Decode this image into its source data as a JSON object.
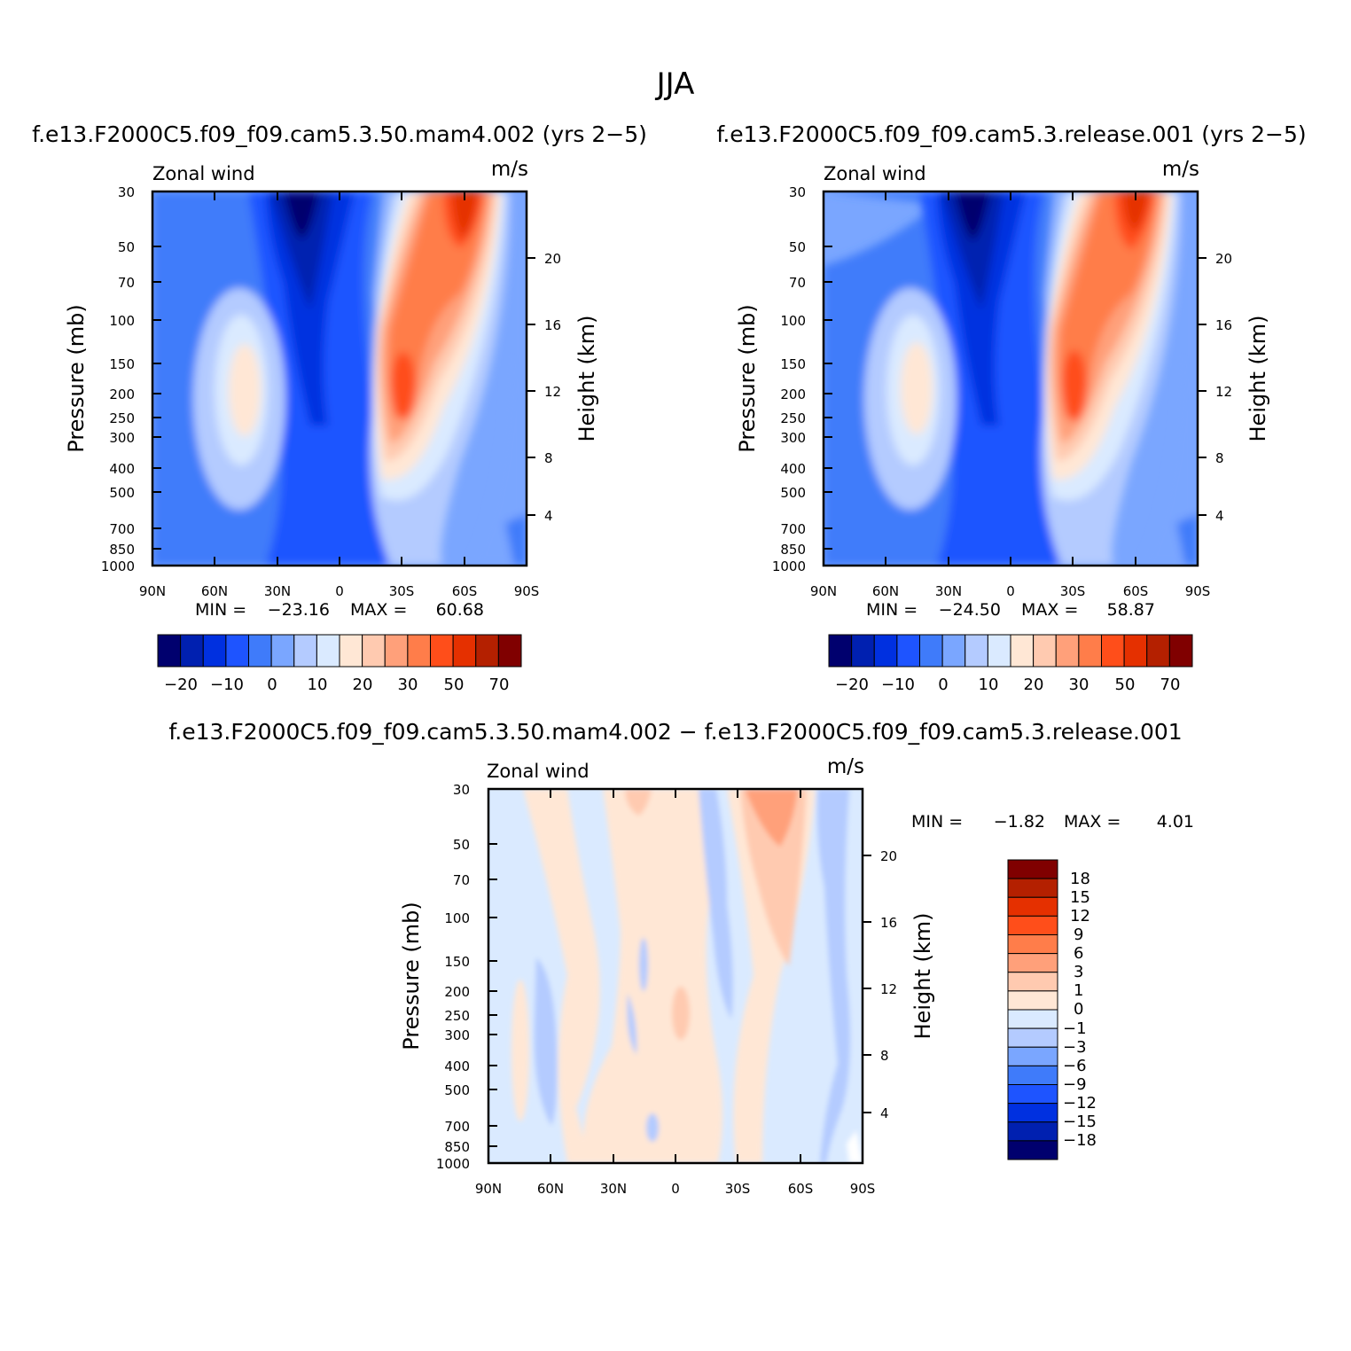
{
  "figure": {
    "season_title": "JJA"
  },
  "colors": {
    "abs_fills": [
      "#00006e",
      "#0020b0",
      "#0030e0",
      "#1e54ff",
      "#3f7bfa",
      "#7aa6ff",
      "#b4cbff",
      "#daeaff",
      "#ffe7d5",
      "#ffcab0",
      "#ffa07a",
      "#ff7d4a",
      "#ff4e1a",
      "#e53000",
      "#b42000",
      "#800000"
    ],
    "diff_fills": [
      "#00006e",
      "#0020b0",
      "#0030e0",
      "#1e54ff",
      "#3f7bfa",
      "#7aa6ff",
      "#b4cbff",
      "#daeaff",
      "#ffe7d5",
      "#ffcab0",
      "#ffa07a",
      "#ff7d4a",
      "#ff4e1a",
      "#e53000",
      "#b42000",
      "#800000"
    ]
  },
  "chart_data": [
    {
      "type": "heatmap",
      "title": "f.e13.F2000C5.f09_f09.cam5.3.50.mam4.002 (yrs 2−5)",
      "left_label": "Zonal wind",
      "right_label": "m/s",
      "ylabel": "Pressure (mb)",
      "y2label": "Height (km)",
      "x_ticks": [
        "90N",
        "60N",
        "30N",
        "0",
        "30S",
        "60S",
        "90S"
      ],
      "y_ticks": [
        "30",
        "50",
        "70",
        "100",
        "150",
        "200",
        "250",
        "300",
        "400",
        "500",
        "700",
        "850",
        "1000"
      ],
      "y2_ticks": [
        "20",
        "16",
        "12",
        "8",
        "4"
      ],
      "stats": {
        "min_label": "MIN =",
        "min": "−23.16",
        "max_label": "MAX =",
        "max": "60.68"
      },
      "colorbar_labels": [
        "−20",
        "−10",
        "0",
        "10",
        "20",
        "30",
        "50",
        "70"
      ]
    },
    {
      "type": "heatmap",
      "title": "f.e13.F2000C5.f09_f09.cam5.3.release.001 (yrs 2−5)",
      "left_label": "Zonal wind",
      "right_label": "m/s",
      "ylabel": "Pressure (mb)",
      "y2label": "Height (km)",
      "x_ticks": [
        "90N",
        "60N",
        "30N",
        "0",
        "30S",
        "60S",
        "90S"
      ],
      "y_ticks": [
        "30",
        "50",
        "70",
        "100",
        "150",
        "200",
        "250",
        "300",
        "400",
        "500",
        "700",
        "850",
        "1000"
      ],
      "y2_ticks": [
        "20",
        "16",
        "12",
        "8",
        "4"
      ],
      "stats": {
        "min_label": "MIN =",
        "min": "−24.50",
        "max_label": "MAX =",
        "max": "58.87"
      },
      "colorbar_labels": [
        "−20",
        "−10",
        "0",
        "10",
        "20",
        "30",
        "50",
        "70"
      ]
    },
    {
      "type": "heatmap",
      "title": "f.e13.F2000C5.f09_f09.cam5.3.50.mam4.002 − f.e13.F2000C5.f09_f09.cam5.3.release.001",
      "left_label": "Zonal wind",
      "right_label": "m/s",
      "ylabel": "Pressure (mb)",
      "y2label": "Height (km)",
      "x_ticks": [
        "90N",
        "60N",
        "30N",
        "0",
        "30S",
        "60S",
        "90S"
      ],
      "y_ticks": [
        "30",
        "50",
        "70",
        "100",
        "150",
        "200",
        "250",
        "300",
        "400",
        "500",
        "700",
        "850",
        "1000"
      ],
      "y2_ticks": [
        "20",
        "16",
        "12",
        "8",
        "4"
      ],
      "stats": {
        "min_label": "MIN =",
        "min": "−1.82",
        "max_label": "MAX =",
        "max": "4.01"
      },
      "colorbar_labels": [
        "18",
        "15",
        "12",
        "9",
        "6",
        "3",
        "1",
        "0",
        "−1",
        "−3",
        "−6",
        "−9",
        "−12",
        "−15",
        "−18"
      ]
    }
  ]
}
